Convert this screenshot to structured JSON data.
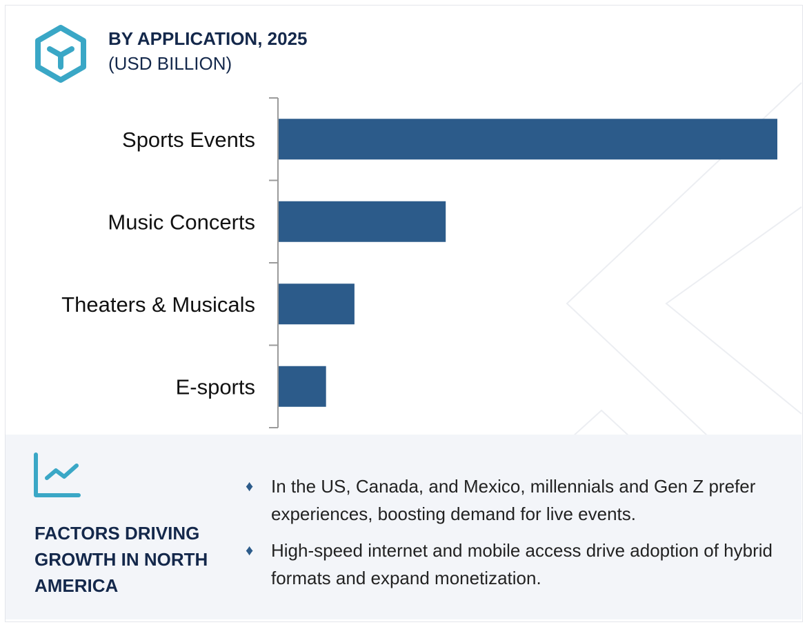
{
  "header": {
    "title": "BY APPLICATION, 2025",
    "subtitle": "(USD BILLION)",
    "logo_icon": "hexagon-y-icon"
  },
  "colors": {
    "bar": "#2c5b8a",
    "accent": "#3aa7c6",
    "title": "#14284b",
    "panel": "#f3f5f9"
  },
  "chart_data": {
    "type": "bar",
    "orientation": "horizontal",
    "title": "BY APPLICATION, 2025",
    "subtitle": "(USD BILLION)",
    "categories": [
      "Sports Events",
      "Music Concerts",
      "Theaters & Musicals",
      "E-sports"
    ],
    "values": [
      100,
      33.5,
      15.2,
      9.5
    ],
    "value_note_scale": "relative",
    "grid": false,
    "value_axis_labels": false
  },
  "factors": {
    "icon": "line-chart-icon",
    "title": "FACTORS DRIVING GROWTH IN NORTH AMERICA",
    "bullets": [
      "In the US, Canada, and Mexico, millennials and Gen Z prefer experiences, boosting demand for live events.",
      "High-speed internet and mobile access drive adoption of hybrid formats and expand monetization."
    ],
    "bullet_glyph": "♦"
  }
}
